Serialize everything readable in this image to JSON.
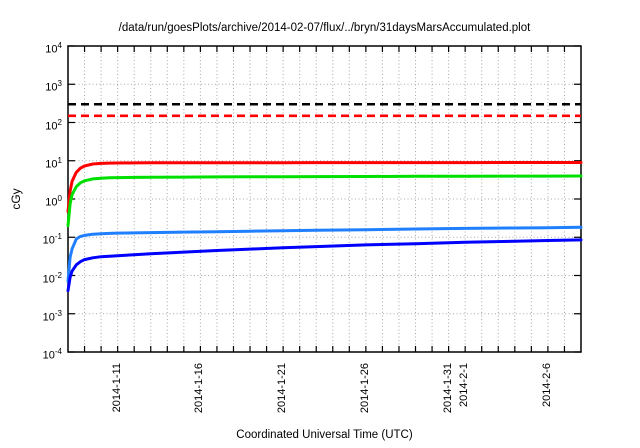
{
  "chart_data": {
    "type": "line",
    "title": "/data/run/goesPlots/archive/2014-02-07/flux/../bryn/31daysMarsAccumulated.plot",
    "xlabel": "Coordinated Universal Time (UTC)",
    "ylabel": "cGy",
    "y_scale": "log10",
    "y_tick_base": "10",
    "y_ticks": [
      4,
      3,
      2,
      1,
      0,
      -1,
      -2,
      -3,
      -4
    ],
    "ylim": [
      0.0001,
      10000
    ],
    "x_range_days": [
      0,
      31
    ],
    "x_minor_tick_every_days": 1,
    "x_ticks": [
      {
        "day": 3,
        "label": "2014-1-11"
      },
      {
        "day": 8,
        "label": "2014-1-16"
      },
      {
        "day": 13,
        "label": "2014-1-21"
      },
      {
        "day": 18,
        "label": "2014-1-26"
      },
      {
        "day": 23,
        "label": "2014-1-31"
      },
      {
        "day": 24,
        "label": "2014-2-1"
      },
      {
        "day": 29,
        "label": "2014-2-6"
      }
    ],
    "grid": {
      "enabled": true,
      "color": "#a8a8a8",
      "style": "dotted"
    },
    "frame_color": "#000000",
    "series": [
      {
        "name": "limit-upper-black-dashed",
        "color": "#000000",
        "style": "dashed",
        "width": 2.6,
        "constant_value": 300
      },
      {
        "name": "limit-lower-red-dashed",
        "color": "#ff0000",
        "style": "dashed",
        "width": 2.6,
        "constant_value": 150
      },
      {
        "name": "accumulated-dose-red",
        "color": "#ff0000",
        "style": "solid",
        "width": 3,
        "points": [
          [
            0,
            0.47
          ],
          [
            0.125,
            1.6
          ],
          [
            0.25,
            2.9
          ],
          [
            0.5,
            5.0
          ],
          [
            0.75,
            6.4
          ],
          [
            1,
            7.3
          ],
          [
            1.5,
            8.2
          ],
          [
            2,
            8.55
          ],
          [
            2.5,
            8.7
          ],
          [
            3,
            8.75
          ],
          [
            4,
            8.8
          ],
          [
            5,
            8.82
          ],
          [
            7,
            8.85
          ],
          [
            9,
            8.87
          ],
          [
            11,
            8.89
          ],
          [
            13,
            8.9
          ],
          [
            15,
            8.92
          ],
          [
            18,
            8.94
          ],
          [
            21,
            8.96
          ],
          [
            24,
            8.97
          ],
          [
            27,
            8.98
          ],
          [
            29,
            8.99
          ],
          [
            31,
            9.0
          ]
        ]
      },
      {
        "name": "accumulated-dose-green",
        "color": "#00e000",
        "style": "solid",
        "width": 3,
        "points": [
          [
            0,
            0.2
          ],
          [
            0.125,
            0.75
          ],
          [
            0.25,
            1.3
          ],
          [
            0.5,
            2.1
          ],
          [
            0.75,
            2.65
          ],
          [
            1,
            3.0
          ],
          [
            1.5,
            3.35
          ],
          [
            2,
            3.5
          ],
          [
            2.5,
            3.58
          ],
          [
            3,
            3.62
          ],
          [
            4,
            3.66
          ],
          [
            5,
            3.7
          ],
          [
            7,
            3.74
          ],
          [
            9,
            3.78
          ],
          [
            11,
            3.8
          ],
          [
            13,
            3.83
          ],
          [
            15,
            3.85
          ],
          [
            18,
            3.88
          ],
          [
            21,
            3.91
          ],
          [
            24,
            3.94
          ],
          [
            27,
            3.96
          ],
          [
            29,
            3.98
          ],
          [
            31,
            4.0
          ]
        ]
      },
      {
        "name": "accumulated-dose-skyblue",
        "color": "#1f7fff",
        "style": "solid",
        "width": 3,
        "points": [
          [
            0,
            0.007
          ],
          [
            0.125,
            0.03
          ],
          [
            0.25,
            0.05
          ],
          [
            0.5,
            0.09
          ],
          [
            0.75,
            0.105
          ],
          [
            1,
            0.112
          ],
          [
            1.5,
            0.12
          ],
          [
            2,
            0.124
          ],
          [
            2.5,
            0.126
          ],
          [
            3,
            0.128
          ],
          [
            4,
            0.13
          ],
          [
            5,
            0.132
          ],
          [
            7,
            0.136
          ],
          [
            9,
            0.14
          ],
          [
            11,
            0.144
          ],
          [
            13,
            0.148
          ],
          [
            15,
            0.152
          ],
          [
            18,
            0.158
          ],
          [
            21,
            0.164
          ],
          [
            24,
            0.17
          ],
          [
            27,
            0.175
          ],
          [
            29,
            0.178
          ],
          [
            31,
            0.182
          ]
        ]
      },
      {
        "name": "accumulated-dose-blue",
        "color": "#0000ff",
        "style": "solid",
        "width": 3,
        "points": [
          [
            0,
            0.004
          ],
          [
            0.125,
            0.009
          ],
          [
            0.25,
            0.013
          ],
          [
            0.5,
            0.019
          ],
          [
            0.75,
            0.023
          ],
          [
            1,
            0.026
          ],
          [
            1.5,
            0.029
          ],
          [
            2,
            0.031
          ],
          [
            2.5,
            0.032
          ],
          [
            3,
            0.033
          ],
          [
            4,
            0.035
          ],
          [
            5,
            0.037
          ],
          [
            7,
            0.041
          ],
          [
            9,
            0.045
          ],
          [
            11,
            0.049
          ],
          [
            13,
            0.053
          ],
          [
            15,
            0.057
          ],
          [
            18,
            0.063
          ],
          [
            21,
            0.068
          ],
          [
            24,
            0.074
          ],
          [
            27,
            0.079
          ],
          [
            29,
            0.082
          ],
          [
            31,
            0.085
          ]
        ]
      }
    ]
  }
}
